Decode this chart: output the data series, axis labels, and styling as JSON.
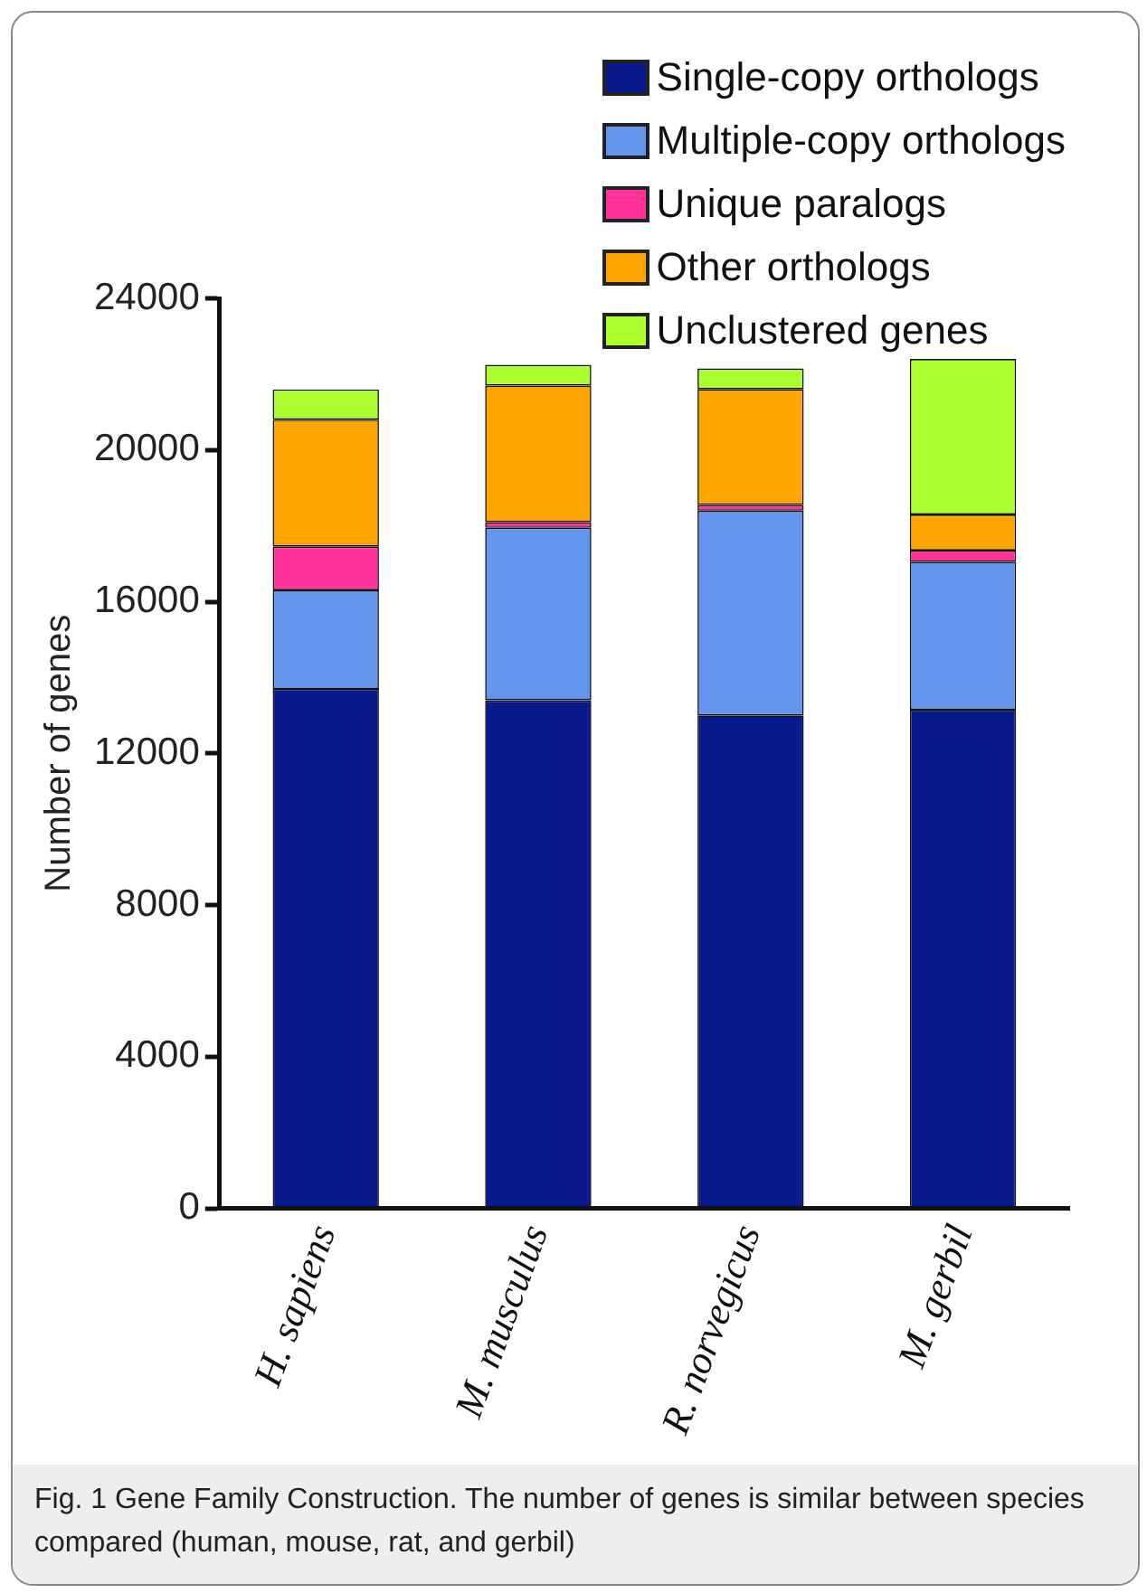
{
  "chart_data": {
    "type": "bar",
    "stacked": true,
    "ylabel": "Number of genes",
    "categories": [
      "H. sapiens",
      "M. musculus",
      "R. norvegicus",
      "M. gerbil"
    ],
    "series": [
      {
        "name": "Single-copy orthologs",
        "color": "#0a1a8c",
        "values": [
          13700,
          13400,
          13000,
          13150
        ]
      },
      {
        "name": "Multiple-copy orthologs",
        "color": "#6495ed",
        "values": [
          2600,
          4550,
          5400,
          3900
        ]
      },
      {
        "name": "Unique paralogs",
        "color": "#ff3399",
        "values": [
          1150,
          150,
          150,
          300
        ]
      },
      {
        "name": "Other orthologs",
        "color": "#ffa500",
        "values": [
          3350,
          3600,
          3050,
          950
        ]
      },
      {
        "name": "Unclustered genes",
        "color": "#adff2f",
        "values": [
          800,
          550,
          550,
          4100
        ]
      }
    ],
    "ylim": [
      0,
      24000
    ],
    "yticks": [
      0,
      4000,
      8000,
      12000,
      16000,
      20000,
      24000
    ],
    "grid": false,
    "legend": "top right",
    "annotations": [
      "Fig. 1 Gene Family Construction. The number of genes is similar between species compared (human, mouse, rat, and gerbil)"
    ]
  }
}
